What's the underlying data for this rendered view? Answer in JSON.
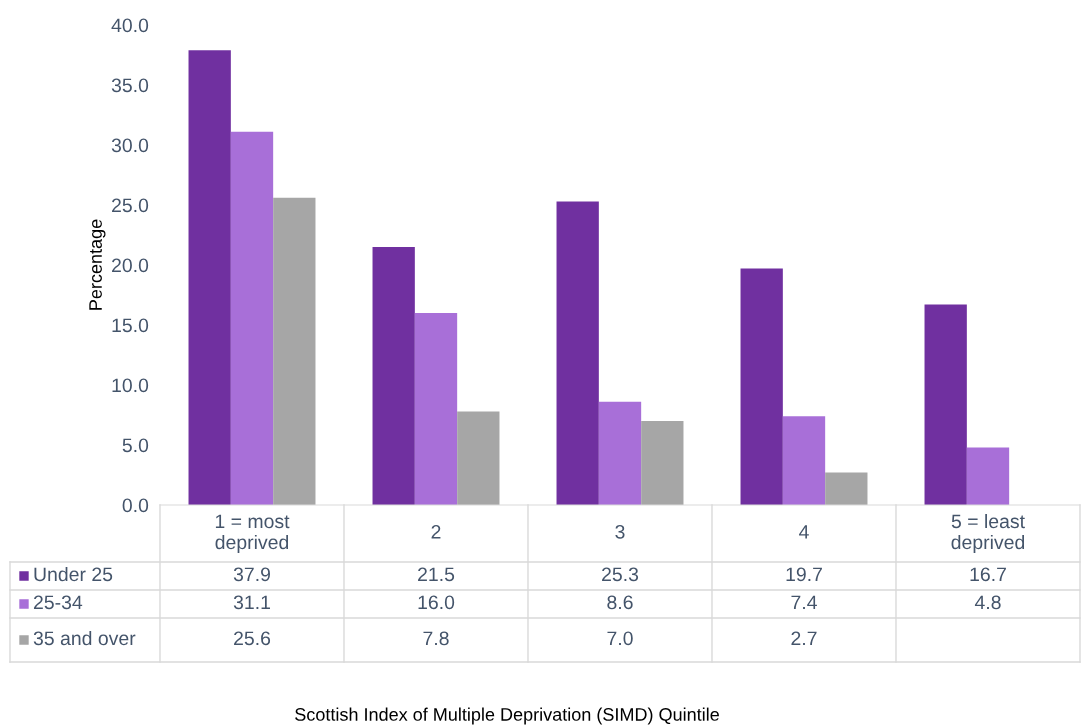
{
  "chart_data": {
    "type": "bar",
    "annotations": [
      "Scottish Index of Multiple Deprivation (SIMD) Quintile"
    ],
    "ylabel": "Percentage",
    "categories": [
      "1 = most\ndeprived",
      "2",
      "3",
      "4",
      "5 = least\ndeprived"
    ],
    "series": [
      {
        "name": "Under 25",
        "color": "#7030a0",
        "values": [
          37.9,
          21.5,
          25.3,
          19.7,
          16.7
        ],
        "value_labels": [
          "37.9",
          "21.5",
          "25.3",
          "19.7",
          "16.7"
        ]
      },
      {
        "name": "25-34",
        "color": "#a86fd8",
        "values": [
          31.1,
          16.0,
          8.6,
          7.4,
          4.8
        ],
        "value_labels": [
          "31.1",
          "16.0",
          "8.6",
          "7.4",
          "4.8"
        ]
      },
      {
        "name": "35 and over",
        "color": "#a6a6a6",
        "values": [
          25.6,
          7.8,
          7.0,
          2.7,
          null
        ],
        "value_labels": [
          "25.6",
          "7.8",
          "7.0",
          "2.7",
          null
        ]
      }
    ],
    "ylim": [
      0,
      40
    ],
    "yticks": [
      {
        "value": 0,
        "label": "0.0"
      },
      {
        "value": 5,
        "label": "5.0"
      },
      {
        "value": 10,
        "label": "10.0"
      },
      {
        "value": 15,
        "label": "15.0"
      },
      {
        "value": 20,
        "label": "20.0"
      },
      {
        "value": 25,
        "label": "25.0"
      },
      {
        "value": 30,
        "label": "30.0"
      },
      {
        "value": 35,
        "label": "35.0"
      },
      {
        "value": 40,
        "label": "40.0"
      }
    ],
    "grid": false,
    "legend": "bottom"
  }
}
